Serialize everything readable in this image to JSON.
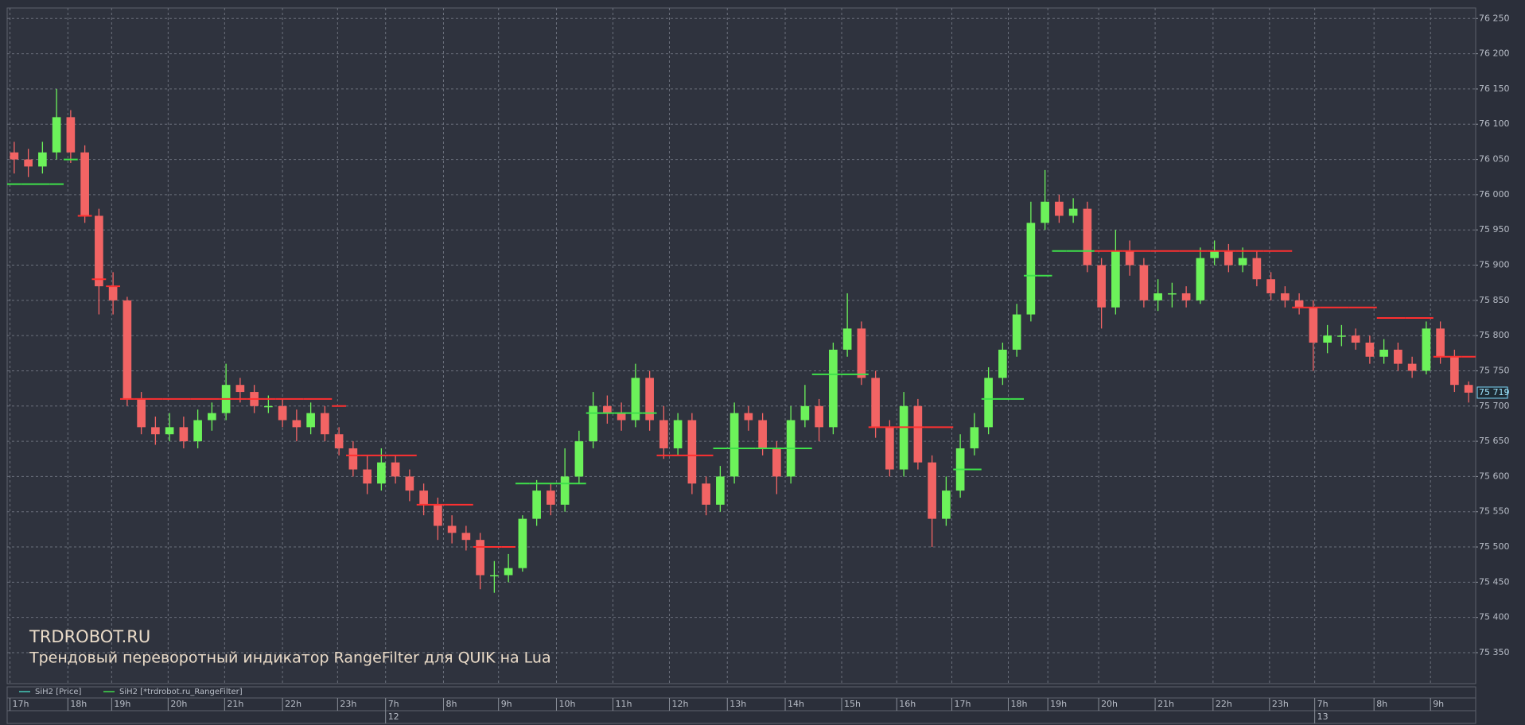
{
  "chart_data": {
    "type": "candlestick",
    "annotations": [
      "TRDROBOT.RU",
      "Трендовый переворотный индикатор RangeFilter для QUIK на Lua"
    ],
    "series": [
      {
        "name": "SiH2 [Price]",
        "color": "#45c8b8",
        "up_color": "#6cf25a",
        "down_color": "#f26464",
        "open": [
          76060,
          76050,
          76040,
          76060,
          76110,
          76060,
          75970,
          75870,
          75850,
          75710,
          75670,
          75660,
          75670,
          75650,
          75680,
          75690,
          75730,
          75720,
          75700,
          75700,
          75680,
          75670,
          75690,
          75660,
          75640,
          75610,
          75590,
          75620,
          75600,
          75580,
          75560,
          75530,
          75520,
          75510,
          75460,
          75460,
          75470,
          75540,
          75580,
          75560,
          75600,
          75650,
          75700,
          75690,
          75680,
          75740,
          75680,
          75640,
          75680,
          75590,
          75560,
          75600,
          75690,
          75680,
          75640,
          75600,
          75680,
          75700,
          75670,
          75780,
          75810,
          75740,
          75670,
          75610,
          75700,
          75620,
          75540,
          75580,
          75640,
          75670,
          75740,
          75780,
          75830,
          75960,
          75990,
          75970,
          75980,
          75900,
          75840,
          75920,
          75900,
          75850,
          75860,
          75860,
          75850,
          75910,
          75920,
          75900,
          75910,
          75880,
          75860,
          75850,
          75840,
          75790,
          75800,
          75800,
          75790,
          75770,
          75780,
          75760,
          75750,
          75810,
          75770,
          75730
        ],
        "high": [
          76075,
          76065,
          76075,
          76150,
          76120,
          76070,
          75980,
          75890,
          75855,
          75720,
          75685,
          75690,
          75685,
          75695,
          75705,
          75760,
          75740,
          75730,
          75715,
          75710,
          75695,
          75705,
          75700,
          75670,
          75650,
          75630,
          75640,
          75630,
          75610,
          75590,
          75570,
          75545,
          75530,
          75520,
          75480,
          75490,
          75545,
          75595,
          75590,
          75640,
          75665,
          75720,
          75715,
          75705,
          75760,
          75750,
          75700,
          75690,
          75690,
          75600,
          75615,
          75705,
          75700,
          75690,
          75650,
          75700,
          75730,
          75710,
          75790,
          75860,
          75820,
          75750,
          75680,
          75720,
          75710,
          75630,
          75600,
          75660,
          75690,
          75755,
          75790,
          75845,
          75990,
          76035,
          76000,
          75995,
          75990,
          75910,
          75950,
          75935,
          75910,
          75880,
          75875,
          75870,
          75925,
          75935,
          75930,
          75925,
          75920,
          75890,
          75870,
          75860,
          75850,
          75815,
          75815,
          75810,
          75800,
          75795,
          75790,
          75770,
          75820,
          75820,
          75780,
          75735
        ],
        "low": [
          76030,
          76025,
          76030,
          76050,
          76045,
          75960,
          75830,
          75830,
          75700,
          75660,
          75645,
          75650,
          75640,
          75640,
          75665,
          75680,
          75705,
          75690,
          75690,
          75670,
          75650,
          75660,
          75650,
          75630,
          75600,
          75575,
          75580,
          75590,
          75565,
          75545,
          75510,
          75505,
          75495,
          75440,
          75435,
          75450,
          75465,
          75530,
          75545,
          75550,
          75590,
          75640,
          75675,
          75665,
          75670,
          75665,
          75625,
          75630,
          75575,
          75545,
          75550,
          75590,
          75665,
          75630,
          75575,
          75590,
          75670,
          75650,
          75660,
          75770,
          75730,
          75655,
          75600,
          75600,
          75610,
          75500,
          75530,
          75570,
          75630,
          75660,
          75730,
          75770,
          75820,
          75950,
          75960,
          75960,
          75890,
          75810,
          75830,
          75885,
          75840,
          75835,
          75840,
          75840,
          75845,
          75900,
          75890,
          75890,
          75870,
          75850,
          75840,
          75830,
          75750,
          75775,
          75785,
          75780,
          75760,
          75760,
          75750,
          75740,
          75745,
          75760,
          75720,
          75705
        ],
        "close": [
          76050,
          76040,
          76060,
          76110,
          76060,
          75970,
          75870,
          75850,
          75710,
          75670,
          75660,
          75670,
          75650,
          75680,
          75690,
          75730,
          75720,
          75700,
          75700,
          75680,
          75670,
          75690,
          75660,
          75640,
          75610,
          75590,
          75620,
          75600,
          75580,
          75560,
          75530,
          75520,
          75510,
          75460,
          75460,
          75470,
          75540,
          75580,
          75560,
          75600,
          75650,
          75700,
          75690,
          75680,
          75740,
          75680,
          75640,
          75680,
          75590,
          75560,
          75600,
          75690,
          75680,
          75640,
          75600,
          75680,
          75700,
          75670,
          75780,
          75810,
          75740,
          75670,
          75610,
          75700,
          75620,
          75540,
          75580,
          75640,
          75670,
          75740,
          75780,
          75830,
          75960,
          75990,
          75970,
          75980,
          75900,
          75840,
          75920,
          75900,
          75850,
          75860,
          75860,
          75850,
          75910,
          75920,
          75900,
          75910,
          75880,
          75860,
          75850,
          75840,
          75790,
          75800,
          75800,
          75790,
          75770,
          75780,
          75760,
          75750,
          75810,
          75770,
          75730,
          75719
        ]
      },
      {
        "name": "SiH2 [*trdrobot.ru_RangeFilter]",
        "color": "#3fd94a",
        "up_color": "#3fe04a",
        "down_color": "#ff3030",
        "up": [
          76015,
          76015,
          76015,
          76015,
          76050,
          null,
          null,
          null,
          null,
          null,
          null,
          null,
          null,
          null,
          null,
          null,
          null,
          null,
          null,
          null,
          null,
          null,
          null,
          null,
          null,
          null,
          null,
          null,
          null,
          null,
          null,
          null,
          null,
          null,
          null,
          null,
          75590,
          75590,
          75590,
          75590,
          75590,
          75690,
          75690,
          75690,
          75690,
          75690,
          null,
          null,
          null,
          null,
          75640,
          75640,
          75640,
          75640,
          75640,
          75640,
          75640,
          75745,
          75745,
          75745,
          75745,
          null,
          null,
          null,
          null,
          null,
          null,
          75610,
          75610,
          75710,
          75710,
          75710,
          75885,
          75885,
          75920,
          75920,
          75920,
          null,
          null,
          null,
          null,
          null,
          null,
          null,
          null,
          null,
          null,
          null,
          null,
          null,
          null,
          null,
          null,
          null,
          null,
          null,
          null,
          null,
          null,
          null,
          null,
          null,
          null,
          null
        ],
        "down": [
          null,
          null,
          null,
          null,
          null,
          75970,
          75880,
          75870,
          75710,
          75710,
          75710,
          75710,
          75710,
          75710,
          75710,
          75710,
          75710,
          75710,
          75710,
          75710,
          75710,
          75710,
          75710,
          75700,
          75630,
          75630,
          75630,
          75630,
          75630,
          75560,
          75560,
          75560,
          75560,
          75500,
          75500,
          75500,
          null,
          null,
          null,
          null,
          null,
          null,
          null,
          null,
          null,
          null,
          75630,
          75630,
          75630,
          75630,
          null,
          null,
          null,
          null,
          null,
          null,
          null,
          null,
          null,
          null,
          null,
          75670,
          75670,
          75670,
          75670,
          75670,
          75670,
          null,
          null,
          null,
          null,
          null,
          null,
          null,
          null,
          null,
          null,
          75920,
          75920,
          75920,
          75920,
          75920,
          75920,
          75920,
          75920,
          75920,
          75920,
          75920,
          75920,
          75920,
          75920,
          75840,
          75840,
          75840,
          75840,
          75840,
          75840,
          75825,
          75825,
          75825,
          75825,
          75770,
          75770,
          75770
        ]
      }
    ],
    "last_price_label": {
      "value": 75719,
      "label": "75 719"
    },
    "xlim": [
      0,
      104
    ],
    "xticks": [
      {
        "value": 0.2,
        "label": "17h"
      },
      {
        "value": 4.3,
        "label": "18h"
      },
      {
        "value": 7.4,
        "label": "19h"
      },
      {
        "value": 11.4,
        "label": "20h"
      },
      {
        "value": 15.4,
        "label": "21h"
      },
      {
        "value": 19.5,
        "label": "22h"
      },
      {
        "value": 23.4,
        "label": "23h"
      },
      {
        "value": 26.8,
        "label": "7h"
      },
      {
        "value": 30.9,
        "label": "8h"
      },
      {
        "value": 34.8,
        "label": "9h"
      },
      {
        "value": 38.9,
        "label": "10h"
      },
      {
        "value": 42.9,
        "label": "11h"
      },
      {
        "value": 46.9,
        "label": "12h"
      },
      {
        "value": 51.0,
        "label": "13h"
      },
      {
        "value": 55.1,
        "label": "14h"
      },
      {
        "value": 59.1,
        "label": "15h"
      },
      {
        "value": 63.0,
        "label": "16h"
      },
      {
        "value": 66.9,
        "label": "17h"
      },
      {
        "value": 70.9,
        "label": "18h"
      },
      {
        "value": 73.7,
        "label": "19h"
      },
      {
        "value": 77.3,
        "label": "20h"
      },
      {
        "value": 81.3,
        "label": "21h"
      },
      {
        "value": 85.4,
        "label": "22h"
      },
      {
        "value": 89.4,
        "label": "23h"
      },
      {
        "value": 92.6,
        "label": "7h"
      },
      {
        "value": 96.8,
        "label": "8h"
      },
      {
        "value": 100.8,
        "label": "9h"
      }
    ],
    "day_ticks": [
      {
        "value": 26.8,
        "label": "12"
      },
      {
        "value": 92.6,
        "label": "13"
      }
    ],
    "ylim": [
      75306,
      76265
    ],
    "yticks": [
      {
        "value": 75350,
        "label": "75 350"
      },
      {
        "value": 75400,
        "label": "75 400"
      },
      {
        "value": 75450,
        "label": "75 450"
      },
      {
        "value": 75500,
        "label": "75 500"
      },
      {
        "value": 75550,
        "label": "75 550"
      },
      {
        "value": 75600,
        "label": "75 600"
      },
      {
        "value": 75650,
        "label": "75 650"
      },
      {
        "value": 75700,
        "label": "75 700"
      },
      {
        "value": 75750,
        "label": "75 750"
      },
      {
        "value": 75800,
        "label": "75 800"
      },
      {
        "value": 75850,
        "label": "75 850"
      },
      {
        "value": 75900,
        "label": "75 900"
      },
      {
        "value": 75950,
        "label": "75 950"
      },
      {
        "value": 76000,
        "label": "76 000"
      },
      {
        "value": 76050,
        "label": "76 050"
      },
      {
        "value": 76100,
        "label": "76 100"
      },
      {
        "value": 76150,
        "label": "76 150"
      },
      {
        "value": 76200,
        "label": "76 200"
      },
      {
        "value": 76250,
        "label": "76 250"
      }
    ],
    "grid": true
  }
}
